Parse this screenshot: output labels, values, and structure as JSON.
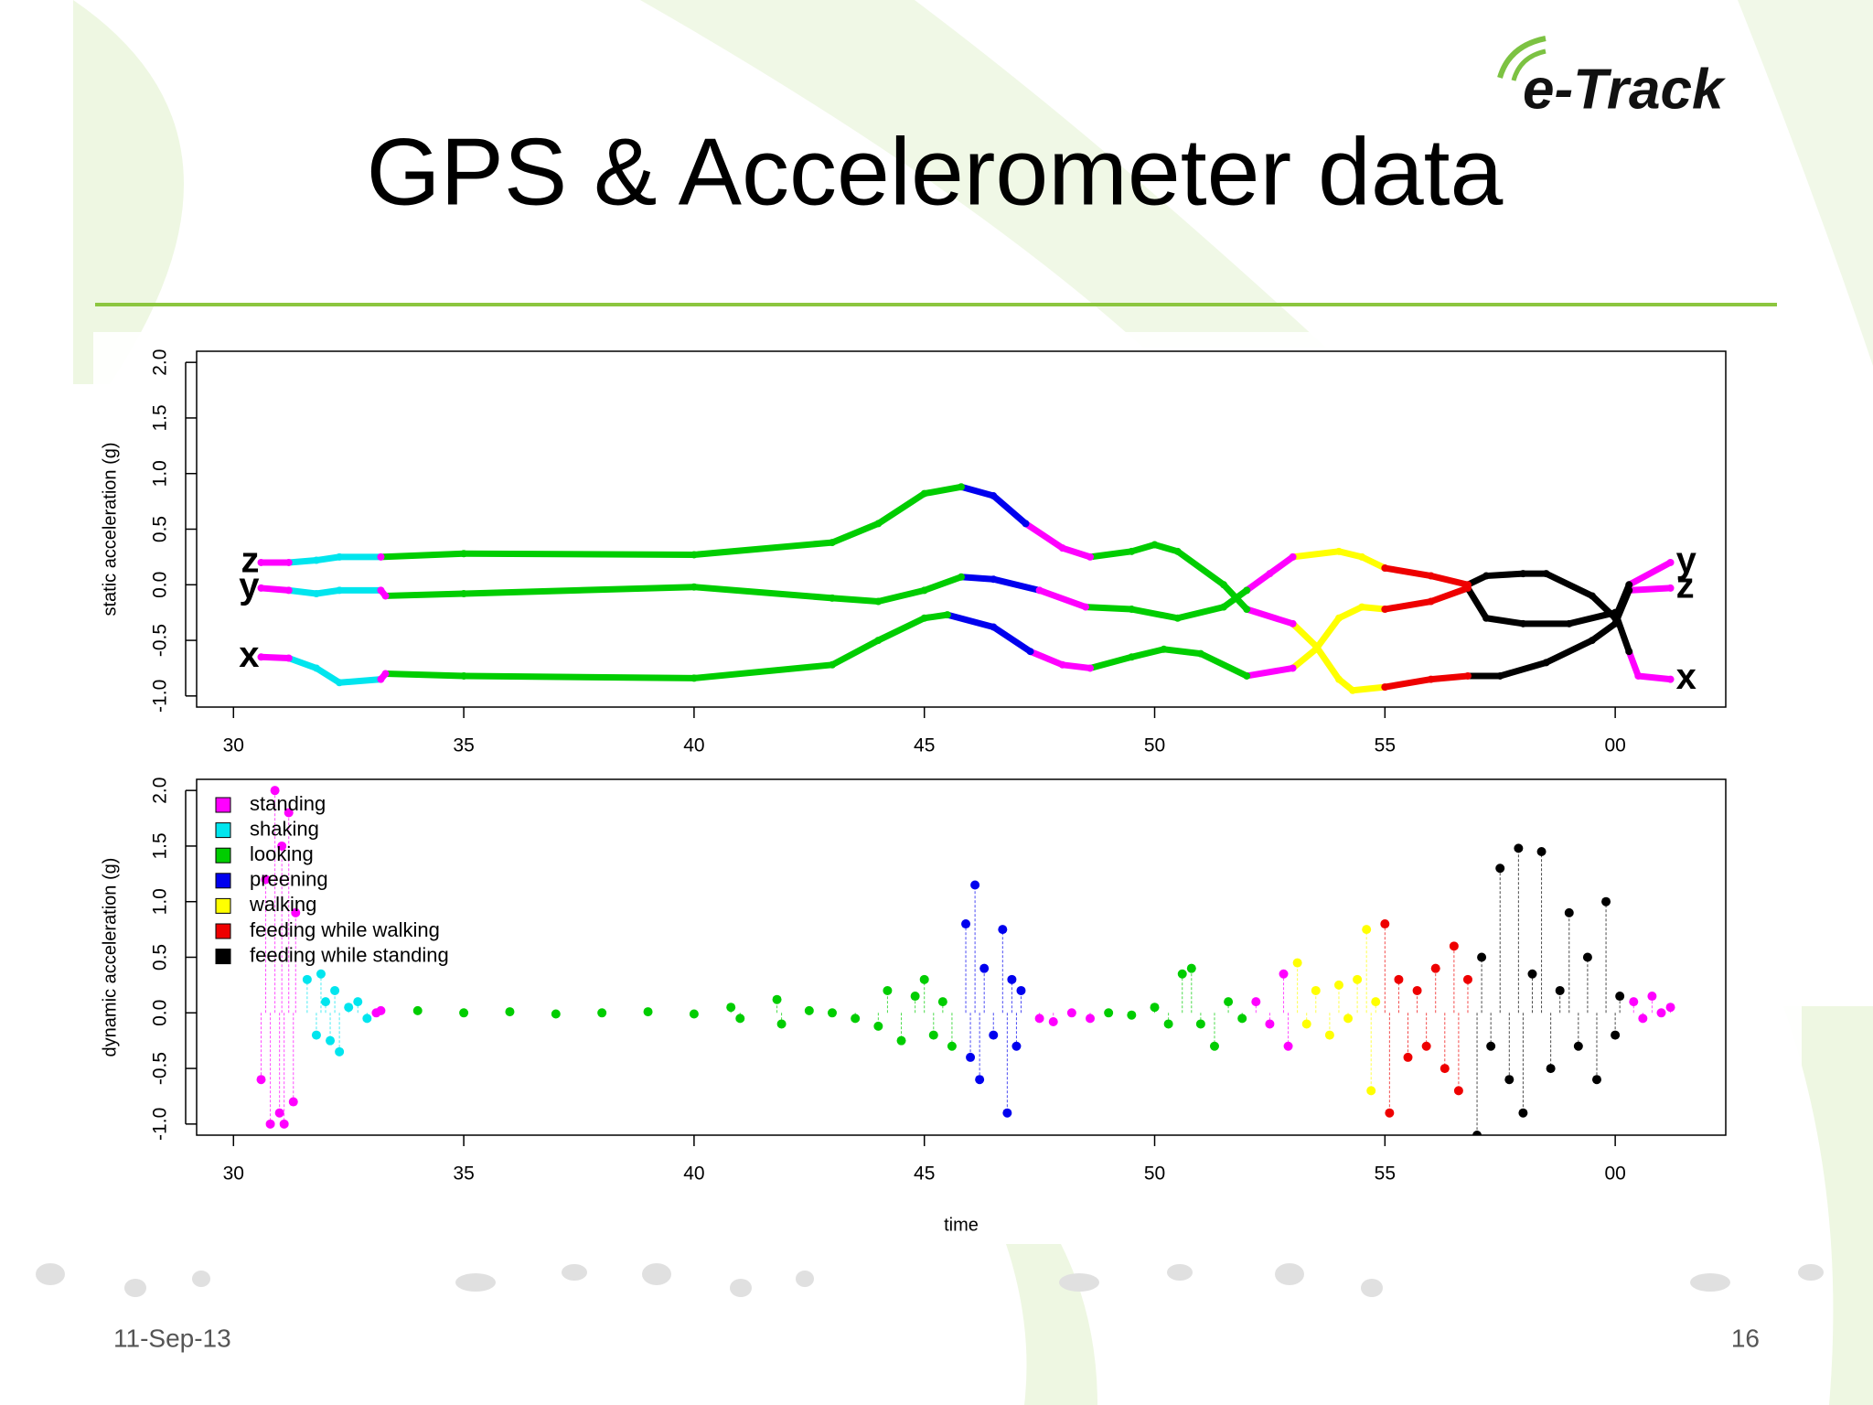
{
  "slide": {
    "title": "GPS & Accelerometer data",
    "logo": "e-Track",
    "date": "11-Sep-13",
    "page_number": 16
  },
  "chart_data": [
    {
      "type": "line",
      "y_label": "static acceleration (g)",
      "xlim": [
        29.2,
        62.4
      ],
      "ylim": [
        -1.1,
        2.1
      ],
      "xticks": [
        30,
        35,
        40,
        45,
        50,
        55,
        {
          "value": 60,
          "label": "00"
        }
      ],
      "yticks": [
        {
          "value": -1,
          "label": "-1.0"
        },
        -0.5,
        {
          "value": 0,
          "label": "0.0"
        },
        0.5,
        {
          "value": 1,
          "label": "1.0"
        },
        1.5,
        {
          "value": 2,
          "label": "2.0"
        }
      ],
      "series": [
        {
          "name": "z",
          "x": [
            30.6,
            31.2,
            31.8,
            32.3,
            33.2,
            35,
            40,
            43,
            44,
            45,
            45.8,
            46.5,
            47.2,
            48,
            48.6,
            49.5,
            50,
            50.5,
            51.5,
            52,
            53,
            53.5,
            54,
            54.3,
            55,
            56,
            56.8,
            57.5,
            58.5,
            59.5,
            60,
            60.3,
            61.2
          ],
          "values": [
            0.2,
            0.2,
            0.22,
            0.25,
            0.25,
            0.28,
            0.27,
            0.38,
            0.55,
            0.82,
            0.88,
            0.8,
            0.55,
            0.33,
            0.25,
            0.3,
            0.36,
            0.3,
            0.0,
            -0.22,
            -0.35,
            -0.55,
            -0.85,
            -0.95,
            -0.92,
            -0.85,
            -0.82,
            -0.82,
            -0.7,
            -0.5,
            -0.35,
            -0.05,
            -0.03
          ]
        },
        {
          "name": "y",
          "x": [
            30.6,
            31.2,
            31.8,
            32.3,
            33.2,
            33.3,
            35,
            40,
            43,
            44,
            45,
            45.8,
            46.5,
            47.5,
            48.5,
            49.5,
            50.5,
            51.5,
            52,
            52.5,
            53,
            54,
            54.5,
            55,
            56,
            56.8,
            57.2,
            58,
            58.5,
            59.5,
            60,
            60.3,
            61.2
          ],
          "values": [
            -0.03,
            -0.05,
            -0.08,
            -0.05,
            -0.05,
            -0.1,
            -0.08,
            -0.02,
            -0.12,
            -0.15,
            -0.05,
            0.07,
            0.05,
            -0.05,
            -0.2,
            -0.22,
            -0.3,
            -0.2,
            -0.05,
            0.1,
            0.25,
            0.3,
            0.25,
            0.15,
            0.08,
            0.0,
            0.08,
            0.1,
            0.1,
            -0.1,
            -0.3,
            0.0,
            0.2
          ]
        },
        {
          "name": "x",
          "x": [
            30.6,
            31.2,
            31.8,
            32.3,
            33.2,
            33.3,
            35,
            40,
            43,
            44,
            45,
            45.5,
            46.5,
            47.3,
            48,
            48.6,
            49.5,
            50.2,
            51,
            52,
            53,
            53.5,
            54,
            54.5,
            55,
            56,
            56.8,
            57.2,
            58,
            59,
            60,
            60.3,
            60.5,
            61.2
          ],
          "values": [
            -0.65,
            -0.66,
            -0.75,
            -0.88,
            -0.85,
            -0.8,
            -0.82,
            -0.84,
            -0.72,
            -0.5,
            -0.3,
            -0.27,
            -0.38,
            -0.6,
            -0.72,
            -0.75,
            -0.65,
            -0.58,
            -0.62,
            -0.82,
            -0.75,
            -0.58,
            -0.3,
            -0.2,
            -0.22,
            -0.15,
            -0.03,
            -0.3,
            -0.35,
            -0.35,
            -0.25,
            -0.6,
            -0.82,
            -0.85
          ]
        }
      ],
      "segments": [
        {
          "behavior": 0,
          "start": 30.6,
          "end": 31.2
        },
        {
          "behavior": 1,
          "start": 31.2,
          "end": 33.0
        },
        {
          "behavior": 0,
          "start": 33.0,
          "end": 33.3
        },
        {
          "behavior": 2,
          "start": 33.3,
          "end": 45.8
        },
        {
          "behavior": 3,
          "start": 45.8,
          "end": 47.3
        },
        {
          "behavior": 0,
          "start": 47.3,
          "end": 48.6
        },
        {
          "behavior": 2,
          "start": 48.6,
          "end": 52.0
        },
        {
          "behavior": 0,
          "start": 52.0,
          "end": 53.0
        },
        {
          "behavior": 4,
          "start": 53.0,
          "end": 54.9
        },
        {
          "behavior": 5,
          "start": 54.9,
          "end": 56.8
        },
        {
          "behavior": 6,
          "start": 56.8,
          "end": 60.3
        },
        {
          "behavior": 0,
          "start": 60.3,
          "end": 61.2
        }
      ]
    },
    {
      "type": "scatter",
      "y_label": "dynamic acceleration (g)",
      "x_label": "time",
      "xlim": [
        29.2,
        62.4
      ],
      "ylim": [
        -1.1,
        2.1
      ],
      "xticks": [
        30,
        35,
        40,
        45,
        50,
        55,
        {
          "value": 60,
          "label": "00"
        }
      ],
      "yticks": [
        {
          "value": -1,
          "label": "-1.0"
        },
        -0.5,
        {
          "value": 0,
          "label": "0.0"
        },
        0.5,
        {
          "value": 1,
          "label": "1.0"
        },
        1.5,
        {
          "value": 2,
          "label": "2.0"
        }
      ],
      "behaviors": [
        {
          "name": "standing",
          "color": "#ff00ff"
        },
        {
          "name": "shaking",
          "color": "#00e5ee"
        },
        {
          "name": "looking",
          "color": "#00cd00"
        },
        {
          "name": "preening",
          "color": "#0000ee"
        },
        {
          "name": "walking",
          "color": "#ffff00"
        },
        {
          "name": "feeding while walking",
          "color": "#ee0000"
        },
        {
          "name": "feeding while standing",
          "color": "#000000"
        }
      ],
      "series": [
        {
          "x": [
            30.6,
            30.7,
            30.8,
            30.9,
            31.0,
            31.05,
            31.1,
            31.2,
            31.3,
            31.35,
            31.6,
            31.8,
            31.9,
            32.0,
            32.1,
            32.2,
            32.3,
            32.5,
            32.7,
            32.9,
            33.1,
            33.2,
            34,
            35,
            36,
            37,
            38,
            39,
            40,
            40.8,
            41,
            41.8,
            41.9,
            42.5,
            43,
            43.5,
            44,
            44.2,
            44.5,
            44.8,
            45,
            45.2,
            45.4,
            45.6,
            45.9,
            46.0,
            46.1,
            46.2,
            46.3,
            46.5,
            46.7,
            46.8,
            46.9,
            47.0,
            47.1,
            47.5,
            47.8,
            48.2,
            48.6,
            49,
            49.5,
            50,
            50.3,
            50.6,
            50.8,
            51,
            51.3,
            51.6,
            51.9,
            52.2,
            52.5,
            52.8,
            52.9,
            53.1,
            53.3,
            53.5,
            53.8,
            54.0,
            54.2,
            54.4,
            54.6,
            54.7,
            54.8,
            55.0,
            55.1,
            55.3,
            55.5,
            55.7,
            55.9,
            56.1,
            56.3,
            56.5,
            56.6,
            56.8,
            57.0,
            57.1,
            57.3,
            57.5,
            57.7,
            57.9,
            58.0,
            58.2,
            58.4,
            58.6,
            58.8,
            59.0,
            59.2,
            59.4,
            59.6,
            59.8,
            60.0,
            60.1,
            60.4,
            60.6,
            60.8,
            61.0,
            61.2
          ],
          "values": [
            -0.6,
            1.2,
            -1.0,
            2.0,
            -0.9,
            1.5,
            -1.0,
            1.8,
            -0.8,
            0.9,
            0.3,
            -0.2,
            0.35,
            0.1,
            -0.25,
            0.2,
            -0.35,
            0.05,
            0.1,
            -0.05,
            0.0,
            0.02,
            0.02,
            0.0,
            0.01,
            -0.01,
            0.0,
            0.01,
            -0.01,
            0.05,
            -0.05,
            0.12,
            -0.1,
            0.02,
            0.0,
            -0.05,
            -0.12,
            0.2,
            -0.25,
            0.15,
            0.3,
            -0.2,
            0.1,
            -0.3,
            0.8,
            -0.4,
            1.15,
            -0.6,
            0.4,
            -0.2,
            0.75,
            -0.9,
            0.3,
            -0.3,
            0.2,
            -0.05,
            -0.08,
            0.0,
            -0.05,
            0.0,
            -0.02,
            0.05,
            -0.1,
            0.35,
            0.4,
            -0.1,
            -0.3,
            0.1,
            -0.05,
            0.1,
            -0.1,
            0.35,
            -0.3,
            0.45,
            -0.1,
            0.2,
            -0.2,
            0.25,
            -0.05,
            0.3,
            0.75,
            -0.7,
            0.1,
            0.8,
            -0.9,
            0.3,
            -0.4,
            0.2,
            -0.3,
            0.4,
            -0.5,
            0.6,
            -0.7,
            0.3,
            -1.1,
            0.5,
            -0.3,
            1.3,
            -0.6,
            1.48,
            -0.9,
            0.35,
            1.45,
            -0.5,
            0.2,
            0.9,
            -0.3,
            0.5,
            -0.6,
            1.0,
            -0.2,
            0.15,
            0.1,
            -0.05,
            0.15,
            0.0,
            0.05
          ]
        }
      ],
      "segments": [
        {
          "behavior": 0,
          "start": 30.4,
          "end": 31.5
        },
        {
          "behavior": 1,
          "start": 31.5,
          "end": 33.0
        },
        {
          "behavior": 0,
          "start": 33.0,
          "end": 33.3
        },
        {
          "behavior": 2,
          "start": 33.3,
          "end": 45.8
        },
        {
          "behavior": 3,
          "start": 45.8,
          "end": 47.3
        },
        {
          "behavior": 0,
          "start": 47.3,
          "end": 48.8
        },
        {
          "behavior": 2,
          "start": 48.8,
          "end": 52.0
        },
        {
          "behavior": 0,
          "start": 52.0,
          "end": 53.0
        },
        {
          "behavior": 4,
          "start": 53.0,
          "end": 54.9
        },
        {
          "behavior": 5,
          "start": 54.9,
          "end": 56.9
        },
        {
          "behavior": 6,
          "start": 56.9,
          "end": 60.2
        },
        {
          "behavior": 0,
          "start": 60.2,
          "end": 61.2
        }
      ]
    }
  ]
}
